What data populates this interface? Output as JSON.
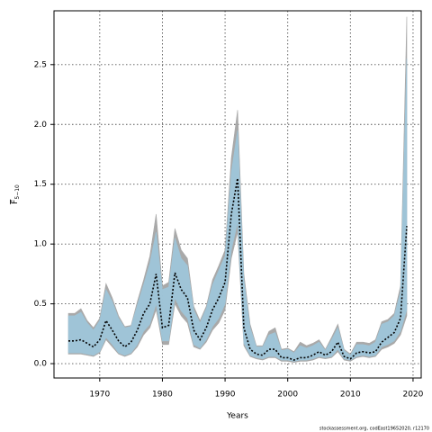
{
  "chart_data": {
    "type": "line",
    "xlabel": "Years",
    "ylabel": {
      "text": "F",
      "subscript": "5−10"
    },
    "footer": "stockassessment.org, codEast19652020, r12170",
    "x": [
      1965,
      1966,
      1967,
      1968,
      1969,
      1970,
      1971,
      1972,
      1973,
      1974,
      1975,
      1976,
      1977,
      1978,
      1979,
      1980,
      1981,
      1982,
      1983,
      1984,
      1985,
      1986,
      1987,
      1988,
      1989,
      1990,
      1991,
      1992,
      1993,
      1994,
      1995,
      1996,
      1997,
      1998,
      1999,
      2000,
      2001,
      2002,
      2003,
      2004,
      2005,
      2006,
      2007,
      2008,
      2009,
      2010,
      2011,
      2012,
      2013,
      2014,
      2015,
      2016,
      2017,
      2018,
      2019
    ],
    "bands": [
      {
        "color": "#a0a0a0",
        "upper": [
          0.42,
          0.42,
          0.46,
          0.36,
          0.3,
          0.38,
          0.67,
          0.55,
          0.4,
          0.31,
          0.32,
          0.52,
          0.7,
          0.9,
          1.25,
          0.65,
          0.68,
          1.13,
          0.95,
          0.88,
          0.48,
          0.36,
          0.48,
          0.7,
          0.82,
          0.95,
          1.72,
          2.12,
          0.75,
          0.33,
          0.15,
          0.15,
          0.27,
          0.3,
          0.12,
          0.13,
          0.1,
          0.18,
          0.15,
          0.17,
          0.2,
          0.12,
          0.22,
          0.33,
          0.12,
          0.08,
          0.18,
          0.18,
          0.17,
          0.2,
          0.35,
          0.37,
          0.42,
          0.65,
          2.9
        ],
        "lower": [
          0.08,
          0.08,
          0.08,
          0.07,
          0.06,
          0.09,
          0.2,
          0.14,
          0.08,
          0.06,
          0.08,
          0.14,
          0.24,
          0.3,
          0.45,
          0.16,
          0.16,
          0.5,
          0.4,
          0.34,
          0.14,
          0.12,
          0.18,
          0.28,
          0.34,
          0.45,
          0.88,
          1.1,
          0.15,
          0.06,
          0.04,
          0.03,
          0.05,
          0.05,
          0.02,
          0.02,
          0.01,
          0.02,
          0.02,
          0.03,
          0.05,
          0.04,
          0.05,
          0.1,
          0.03,
          0.02,
          0.05,
          0.06,
          0.05,
          0.06,
          0.12,
          0.14,
          0.17,
          0.24,
          0.4
        ]
      },
      {
        "color": "#9ec7dc",
        "upper": [
          0.4,
          0.4,
          0.43,
          0.34,
          0.28,
          0.36,
          0.62,
          0.52,
          0.38,
          0.3,
          0.31,
          0.49,
          0.66,
          0.84,
          1.1,
          0.62,
          0.64,
          1.05,
          0.88,
          0.82,
          0.45,
          0.34,
          0.46,
          0.66,
          0.78,
          0.9,
          1.6,
          1.95,
          0.7,
          0.3,
          0.14,
          0.14,
          0.24,
          0.26,
          0.11,
          0.12,
          0.09,
          0.15,
          0.13,
          0.15,
          0.18,
          0.11,
          0.2,
          0.3,
          0.11,
          0.07,
          0.16,
          0.16,
          0.15,
          0.18,
          0.33,
          0.35,
          0.4,
          0.6,
          2.55
        ],
        "lower": [
          0.09,
          0.09,
          0.09,
          0.08,
          0.07,
          0.1,
          0.22,
          0.16,
          0.09,
          0.07,
          0.09,
          0.16,
          0.27,
          0.33,
          0.5,
          0.19,
          0.19,
          0.55,
          0.44,
          0.38,
          0.16,
          0.13,
          0.2,
          0.31,
          0.38,
          0.5,
          0.95,
          1.18,
          0.17,
          0.07,
          0.05,
          0.04,
          0.06,
          0.06,
          0.03,
          0.03,
          0.02,
          0.03,
          0.03,
          0.04,
          0.06,
          0.05,
          0.06,
          0.12,
          0.04,
          0.03,
          0.06,
          0.07,
          0.06,
          0.07,
          0.14,
          0.16,
          0.19,
          0.27,
          0.45
        ]
      }
    ],
    "series": [
      {
        "color": "#000000",
        "values": [
          0.19,
          0.19,
          0.2,
          0.17,
          0.14,
          0.2,
          0.36,
          0.28,
          0.19,
          0.14,
          0.18,
          0.28,
          0.42,
          0.5,
          0.75,
          0.3,
          0.32,
          0.76,
          0.62,
          0.55,
          0.28,
          0.2,
          0.3,
          0.45,
          0.55,
          0.68,
          1.25,
          1.55,
          0.3,
          0.12,
          0.08,
          0.07,
          0.12,
          0.12,
          0.05,
          0.05,
          0.03,
          0.05,
          0.05,
          0.07,
          0.1,
          0.07,
          0.1,
          0.18,
          0.06,
          0.04,
          0.09,
          0.1,
          0.09,
          0.1,
          0.18,
          0.22,
          0.26,
          0.38,
          1.15
        ]
      }
    ],
    "xlim": [
      1962.7,
      2021.3
    ],
    "ylim": [
      -0.12,
      2.95
    ],
    "xticks": [
      1970,
      1980,
      1990,
      2000,
      2010,
      2020
    ],
    "yticks": [
      {
        "value": 0,
        "label": "0.0"
      },
      {
        "value": 0.5,
        "label": "0.5"
      },
      {
        "value": 1,
        "label": "1.0"
      },
      {
        "value": 1.5,
        "label": "1.5"
      },
      {
        "value": 2,
        "label": "2.0"
      },
      {
        "value": 2.5,
        "label": "2.5"
      }
    ],
    "grid": true
  }
}
